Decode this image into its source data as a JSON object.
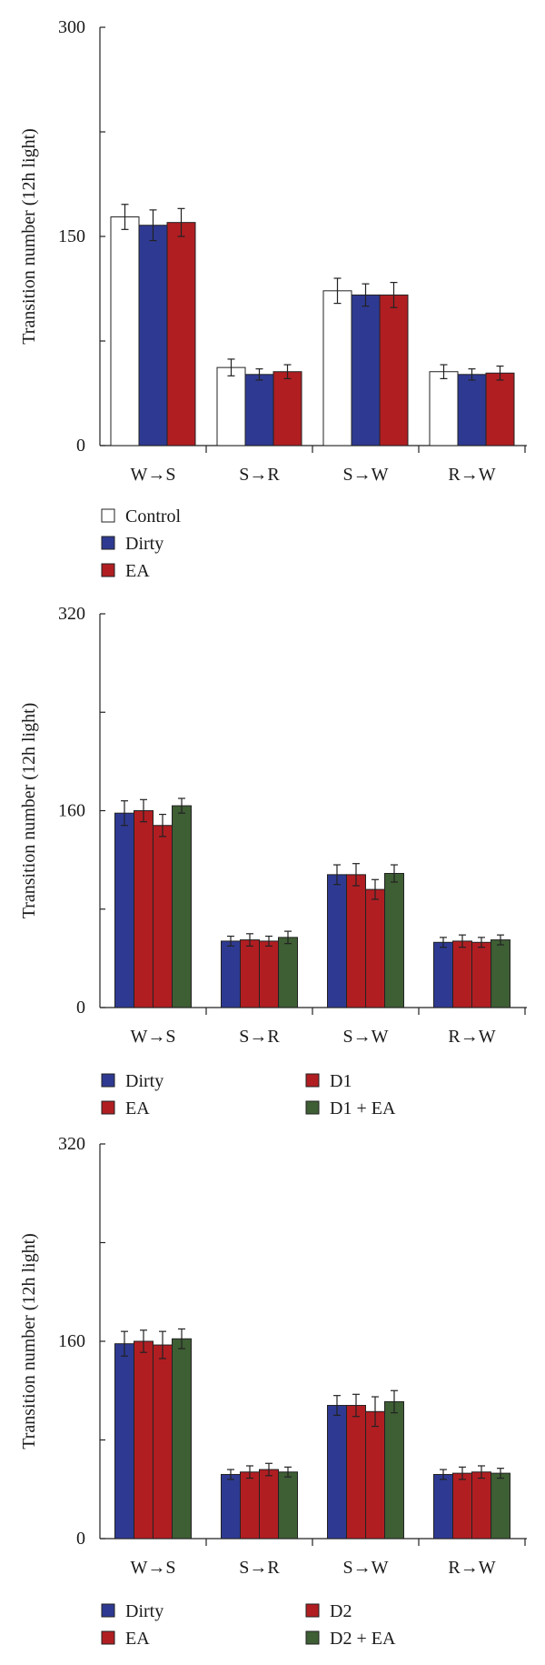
{
  "colors": {
    "Control": "#ffffff",
    "Dirty": "#2e3a92",
    "EA": "#b01e22",
    "D1": "#b01e22",
    "D1 + EA": "#3e5e34",
    "D2": "#b01e22",
    "D2 + EA": "#3e5e34"
  },
  "chart_data": [
    {
      "type": "bar",
      "ylabel": "Transition number (12h light)",
      "ylim": [
        0,
        300
      ],
      "yticks": [
        0,
        150,
        300
      ],
      "categories": [
        "W→S",
        "S→R",
        "S→W",
        "R→W"
      ],
      "legend_columns": 1,
      "series": [
        {
          "name": "Control",
          "values": [
            164,
            56,
            111,
            53
          ],
          "errors": [
            9,
            6,
            9,
            5
          ]
        },
        {
          "name": "Dirty",
          "values": [
            158,
            51,
            108,
            51
          ],
          "errors": [
            11,
            4,
            8,
            4
          ]
        },
        {
          "name": "EA",
          "values": [
            160,
            53,
            108,
            52
          ],
          "errors": [
            10,
            5,
            9,
            5
          ]
        }
      ]
    },
    {
      "type": "bar",
      "ylabel": "Transition number (12h light)",
      "ylim": [
        0,
        320
      ],
      "yticks": [
        0,
        160,
        320
      ],
      "categories": [
        "W→S",
        "S→R",
        "S→W",
        "R→W"
      ],
      "legend_columns": 2,
      "series": [
        {
          "name": "Dirty",
          "values": [
            158,
            54,
            108,
            53
          ],
          "errors": [
            10,
            4,
            8,
            4
          ]
        },
        {
          "name": "EA",
          "values": [
            160,
            55,
            108,
            54
          ],
          "errors": [
            9,
            5,
            9,
            5
          ]
        },
        {
          "name": "D1",
          "values": [
            148,
            54,
            96,
            53
          ],
          "errors": [
            9,
            4,
            8,
            4
          ]
        },
        {
          "name": "D1 + EA",
          "values": [
            164,
            57,
            109,
            55
          ],
          "errors": [
            6,
            5,
            7,
            4
          ]
        }
      ]
    },
    {
      "type": "bar",
      "ylabel": "Transition number (12h light)",
      "ylim": [
        0,
        320
      ],
      "yticks": [
        0,
        160,
        320
      ],
      "categories": [
        "W→S",
        "S→R",
        "S→W",
        "R→W"
      ],
      "legend_columns": 2,
      "series": [
        {
          "name": "Dirty",
          "values": [
            158,
            52,
            108,
            52
          ],
          "errors": [
            10,
            4,
            8,
            4
          ]
        },
        {
          "name": "EA",
          "values": [
            160,
            54,
            108,
            53
          ],
          "errors": [
            9,
            5,
            9,
            5
          ]
        },
        {
          "name": "D2",
          "values": [
            157,
            56,
            103,
            54
          ],
          "errors": [
            11,
            5,
            12,
            5
          ]
        },
        {
          "name": "D2 + EA",
          "values": [
            162,
            54,
            111,
            53
          ],
          "errors": [
            8,
            4,
            9,
            4
          ]
        }
      ]
    }
  ]
}
